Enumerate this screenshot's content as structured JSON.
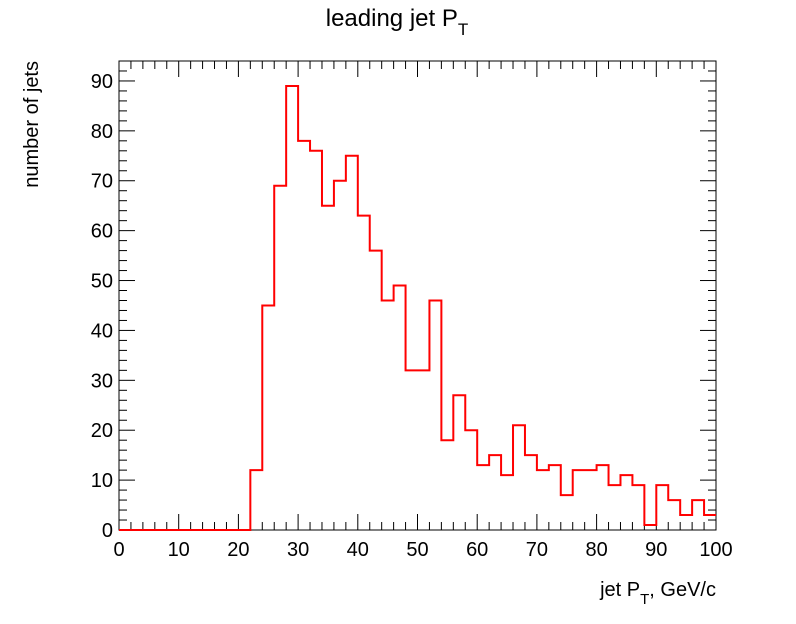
{
  "chart_data": {
    "type": "bar",
    "style": "step-histogram",
    "title": {
      "base": "leading jet P",
      "sub": "T"
    },
    "xlabel": {
      "base": "jet P",
      "sub": "T",
      "suffix": ", GeV/c"
    },
    "ylabel": "number of jets",
    "xlim": [
      0,
      100
    ],
    "ylim": [
      0,
      94
    ],
    "x_major_ticks": [
      0,
      10,
      20,
      30,
      40,
      50,
      60,
      70,
      80,
      90,
      100
    ],
    "y_major_ticks": [
      0,
      10,
      20,
      30,
      40,
      50,
      60,
      70,
      80,
      90
    ],
    "x_tick_labels": [
      "0",
      "10",
      "20",
      "30",
      "40",
      "50",
      "60",
      "70",
      "80",
      "90",
      "100"
    ],
    "y_tick_labels": [
      "0",
      "10",
      "20",
      "30",
      "40",
      "50",
      "60",
      "70",
      "80",
      "90"
    ],
    "bin_edges_start": 0,
    "bin_width": 2,
    "series": [
      {
        "color": "#ff0000",
        "values": [
          0,
          0,
          0,
          0,
          0,
          0,
          0,
          0,
          0,
          0,
          0,
          12,
          45,
          69,
          89,
          78,
          76,
          65,
          70,
          75,
          63,
          56,
          46,
          49,
          32,
          32,
          46,
          18,
          27,
          20,
          13,
          15,
          11,
          21,
          15,
          12,
          13,
          7,
          12,
          12,
          13,
          9,
          11,
          9,
          1,
          9,
          6,
          3,
          6,
          3
        ]
      }
    ],
    "grid": false,
    "legend": "none"
  }
}
